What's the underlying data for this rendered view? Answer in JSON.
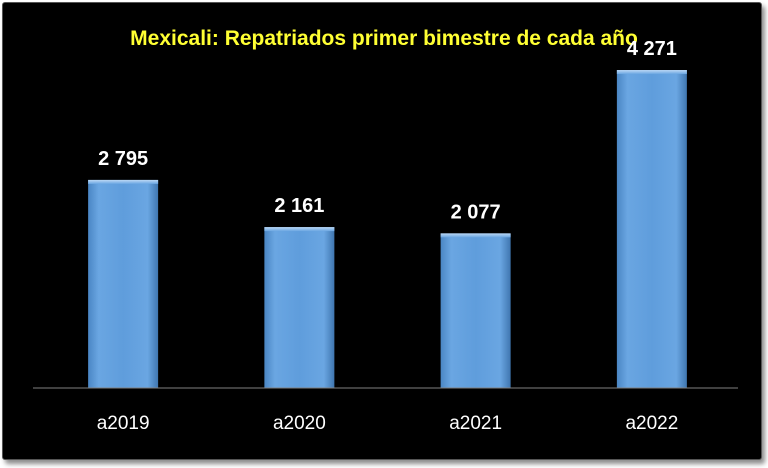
{
  "chart_data": {
    "type": "bar",
    "title": "Mexicali: Repatriados primer bimestre de cada año",
    "xlabel": "",
    "ylabel": "",
    "categories": [
      "a2019",
      "a2020",
      "a2021",
      "a2022"
    ],
    "values": [
      2795,
      2161,
      2077,
      4271
    ],
    "value_labels": [
      "2 795",
      "2 161",
      "2 077",
      "4 271"
    ],
    "ylim": [
      0,
      4500
    ],
    "grid": false,
    "legend": "none",
    "colors": {
      "background": "#000000",
      "bar": "#5b9bd5",
      "title": "#ffff33",
      "text": "#ffffff"
    }
  }
}
